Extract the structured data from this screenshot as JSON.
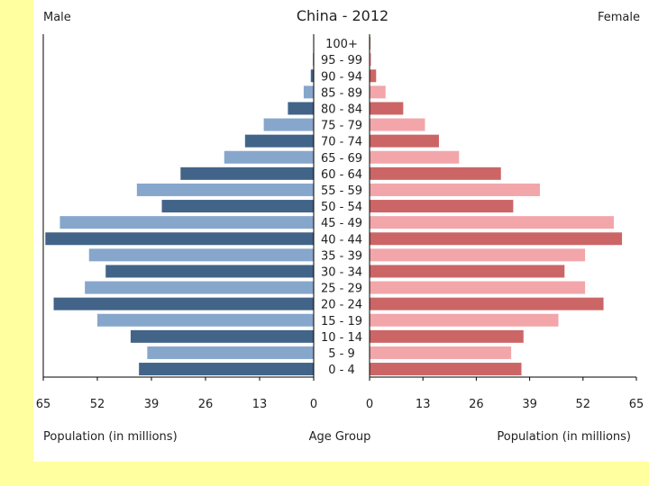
{
  "chart_data": {
    "type": "bar",
    "title": "China - 2012",
    "left_label": "Male",
    "right_label": "Female",
    "xlabel_left": "Population (in millions)",
    "xlabel_center": "Age Group",
    "xlabel_right": "Population (in millions)",
    "xlim": [
      0,
      65
    ],
    "ticks_left": [
      "65",
      "52",
      "39",
      "26",
      "13",
      "0"
    ],
    "ticks_right": [
      "0",
      "13",
      "26",
      "39",
      "52",
      "65"
    ],
    "tick_values": [
      65,
      52,
      39,
      26,
      13,
      0
    ],
    "categories": [
      "100+",
      "95 - 99",
      "90 - 94",
      "85 - 89",
      "80 - 84",
      "75 - 79",
      "70 - 74",
      "65 - 69",
      "60 - 64",
      "55 - 59",
      "50 - 54",
      "45 - 49",
      "40 - 44",
      "35 - 39",
      "30 - 34",
      "25 - 29",
      "20 - 24",
      "15 - 19",
      "10 - 14",
      "5 - 9",
      "0 - 4"
    ],
    "series": [
      {
        "values": [
          0.1,
          0.2,
          0.7,
          2.4,
          6.2,
          12.0,
          16.5,
          21.5,
          32.0,
          42.5,
          36.5,
          61.0,
          64.5,
          54.0,
          50.0,
          55.0,
          62.5,
          52.0,
          44.0,
          40.0,
          42.0
        ]
      },
      {
        "values": [
          0.2,
          0.4,
          1.6,
          3.9,
          8.2,
          13.5,
          16.9,
          21.8,
          32.0,
          41.5,
          35.0,
          59.5,
          61.5,
          52.5,
          47.5,
          52.5,
          57.0,
          46.0,
          37.5,
          34.5,
          37.0
        ]
      }
    ]
  },
  "colors": {
    "male_dark": "#426488",
    "male_light": "#87a6cc",
    "female_dark": "#cc6666",
    "female_light": "#f2a6aa",
    "background": "#ffffa0"
  }
}
